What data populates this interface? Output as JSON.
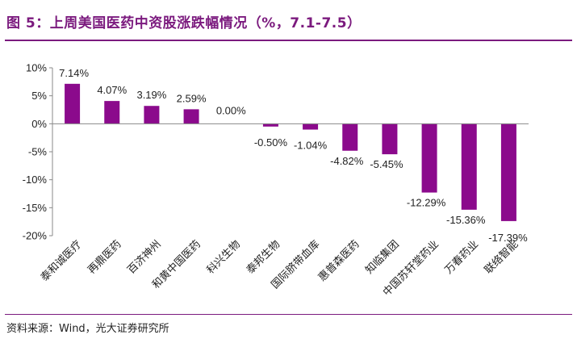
{
  "figure": {
    "title": "图 5：上周美国医药中资股涨跌幅情况（%，7.1-7.5）",
    "source_label": "资料来源：",
    "source_text": "Wind，光大证券研究所"
  },
  "colors": {
    "accent": "#7b1a7e",
    "bar": "#8b0a8c",
    "axis": "#888888"
  },
  "chart_data": {
    "type": "bar",
    "title": "",
    "xlabel": "",
    "ylabel": "",
    "ylim": [
      -20,
      10
    ],
    "yticks": [
      10,
      5,
      0,
      -5,
      -10,
      -15,
      -20
    ],
    "ytick_labels": [
      "10%",
      "5%",
      "0%",
      "-5%",
      "-10%",
      "-15%",
      "-20%"
    ],
    "grid": false,
    "legend": "none",
    "categories": [
      "泰和诚医疗",
      "再鼎医药",
      "百济神州",
      "和黄中国医药",
      "科兴生物",
      "泰邦生物",
      "国际脐带血库",
      "惠普森医药",
      "知临集团",
      "中国苏轩堂药业",
      "万春药业",
      "联络智能"
    ],
    "values": [
      7.14,
      4.07,
      3.19,
      2.59,
      0.0,
      -0.5,
      -1.04,
      -4.82,
      -5.45,
      -12.29,
      -15.36,
      -17.39
    ],
    "value_labels": [
      "7.14%",
      "4.07%",
      "3.19%",
      "2.59%",
      "0.00%",
      "-0.50%",
      "-1.04%",
      "-4.82%",
      "-5.45%",
      "-12.29%",
      "-15.36%",
      "-17.39%"
    ]
  }
}
